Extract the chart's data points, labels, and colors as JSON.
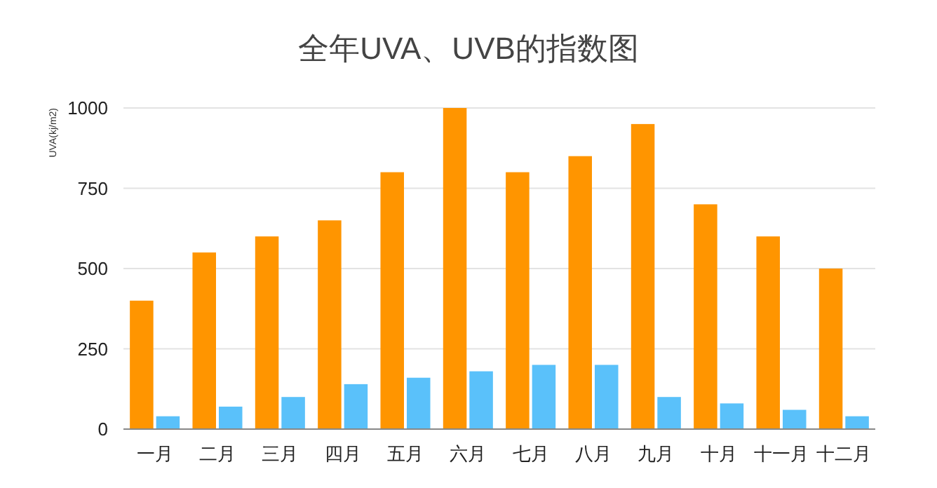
{
  "chart_data": {
    "type": "bar",
    "title": "全年UVA、UVB的指数图",
    "ylabel": "UVA(kj/m2)",
    "categories": [
      "一月",
      "二月",
      "三月",
      "四月",
      "五月",
      "六月",
      "七月",
      "八月",
      "九月",
      "十月",
      "十一月",
      "十二月"
    ],
    "series": [
      {
        "color": "#ff9500",
        "values": [
          400,
          550,
          600,
          650,
          800,
          1000,
          800,
          850,
          950,
          700,
          600,
          500
        ]
      },
      {
        "color": "#5ac1fa",
        "values": [
          40,
          70,
          100,
          140,
          160,
          180,
          200,
          200,
          100,
          80,
          60,
          40
        ]
      }
    ],
    "ylim": [
      0,
      1000
    ],
    "yticks": [
      0,
      250,
      500,
      750,
      1000
    ],
    "grid": "y"
  }
}
